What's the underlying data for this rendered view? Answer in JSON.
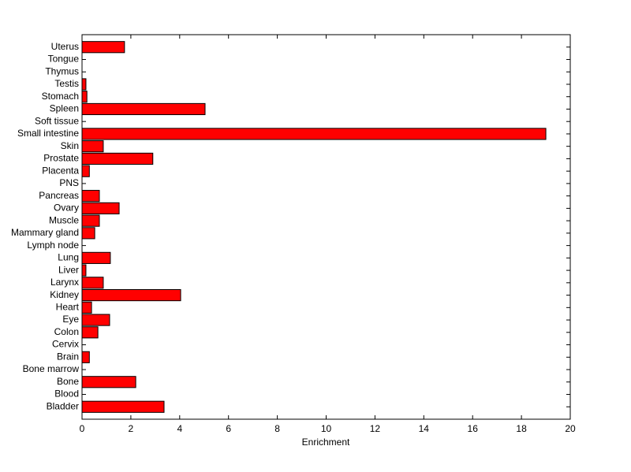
{
  "chart_data": {
    "type": "barh",
    "xlabel": "Enrichment",
    "categories": [
      "Bladder",
      "Blood",
      "Bone",
      "Bone marrow",
      "Brain",
      "Cervix",
      "Colon",
      "Eye",
      "Heart",
      "Kidney",
      "Larynx",
      "Liver",
      "Lung",
      "Lymph node",
      "Mammary gland",
      "Muscle",
      "Ovary",
      "Pancreas",
      "PNS",
      "Placenta",
      "Prostate",
      "Skin",
      "Small intestine",
      "Soft tissue",
      "Spleen",
      "Stomach",
      "Testis",
      "Thymus",
      "Tongue",
      "Uterus"
    ],
    "values": [
      3.36,
      0,
      2.2,
      0,
      0.3,
      0,
      0.65,
      1.13,
      0.39,
      4.04,
      0.87,
      0.16,
      1.16,
      0,
      0.52,
      0.71,
      1.52,
      0.71,
      0,
      0.3,
      2.9,
      0.87,
      19.0,
      0,
      5.04,
      0.2,
      0.16,
      0,
      0,
      1.74
    ],
    "color": "#ff0000",
    "xlim": [
      0,
      20
    ],
    "xticks": [
      0,
      2,
      4,
      6,
      8,
      10,
      12,
      14,
      16,
      18,
      20
    ]
  }
}
